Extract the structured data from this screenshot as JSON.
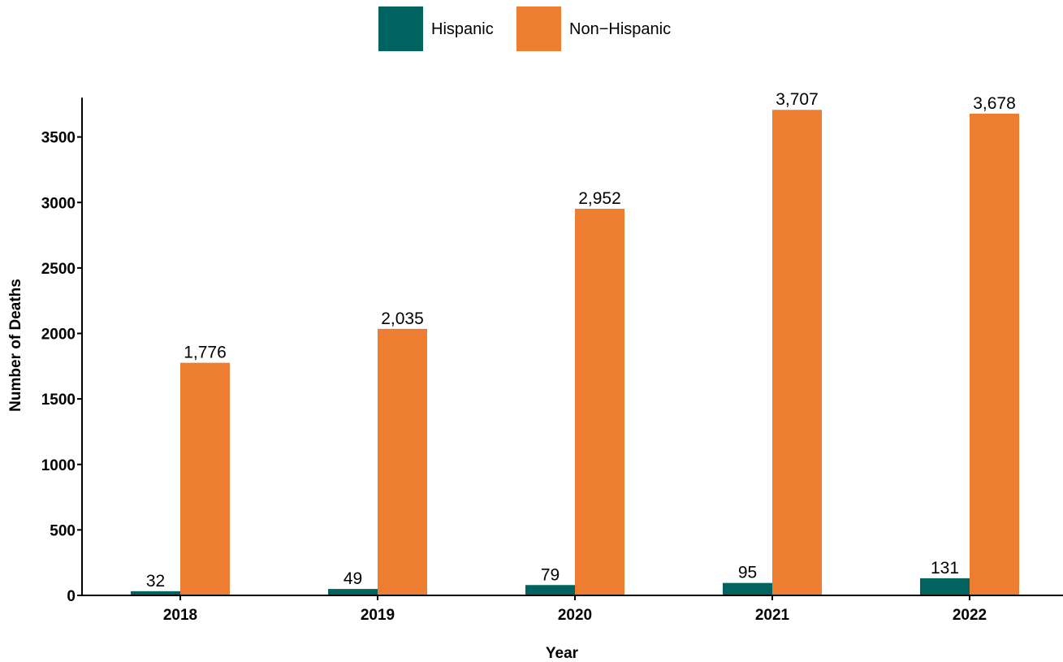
{
  "chart_data": {
    "type": "bar",
    "categories": [
      "2018",
      "2019",
      "2020",
      "2021",
      "2022"
    ],
    "series": [
      {
        "name": "Hispanic",
        "color": "#00635f",
        "values": [
          32,
          49,
          79,
          95,
          131
        ],
        "labels": [
          "32",
          "49",
          "79",
          "95",
          "131"
        ]
      },
      {
        "name": "Non−Hispanic",
        "color": "#ed7d31",
        "values": [
          1776,
          2035,
          2952,
          3707,
          3678
        ],
        "labels": [
          "1,776",
          "2,035",
          "2,952",
          "3,707",
          "3,678"
        ]
      }
    ],
    "xlabel": "Year",
    "ylabel": "Number of Deaths",
    "ylim": [
      0,
      3800
    ],
    "yticks": [
      0,
      500,
      1000,
      1500,
      2000,
      2500,
      3000,
      3500
    ],
    "legend_position": "top",
    "grid": false
  }
}
